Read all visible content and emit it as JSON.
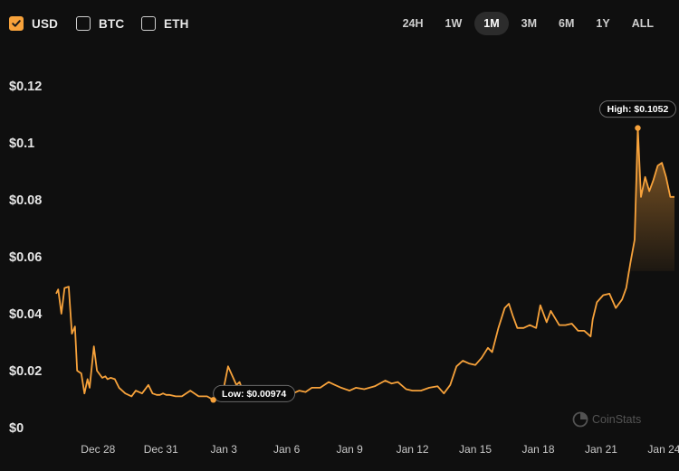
{
  "currencies": [
    {
      "label": "USD",
      "checked": true
    },
    {
      "label": "BTC",
      "checked": false
    },
    {
      "label": "ETH",
      "checked": false
    }
  ],
  "ranges": [
    {
      "label": "24H",
      "active": false
    },
    {
      "label": "1W",
      "active": false
    },
    {
      "label": "1M",
      "active": true
    },
    {
      "label": "3M",
      "active": false
    },
    {
      "label": "6M",
      "active": false
    },
    {
      "label": "1Y",
      "active": false
    },
    {
      "label": "ALL",
      "active": false
    }
  ],
  "watermark": "CoinStats",
  "colors": {
    "line": "#f7a23b",
    "checked": "#f7a23b",
    "background": "#0f0f0f"
  },
  "chart_data": {
    "type": "area",
    "title": "",
    "xlabel": "",
    "ylabel": "",
    "ylim": [
      0,
      0.12
    ],
    "xlim": [
      -1.0,
      28.5
    ],
    "grid": false,
    "y_ticks": [
      {
        "value": 0,
        "label": "$0"
      },
      {
        "value": 0.02,
        "label": "$0.02"
      },
      {
        "value": 0.04,
        "label": "$0.04"
      },
      {
        "value": 0.06,
        "label": "$0.06"
      },
      {
        "value": 0.08,
        "label": "$0.08"
      },
      {
        "value": 0.1,
        "label": "$0.1"
      },
      {
        "value": 0.12,
        "label": "$0.12"
      }
    ],
    "x_ticks": [
      {
        "day": 1,
        "label": "Dec 28"
      },
      {
        "day": 4,
        "label": "Dec 31"
      },
      {
        "day": 7,
        "label": "Jan 3"
      },
      {
        "day": 10,
        "label": "Jan 6"
      },
      {
        "day": 13,
        "label": "Jan 9"
      },
      {
        "day": 16,
        "label": "Jan 12"
      },
      {
        "day": 19,
        "label": "Jan 15"
      },
      {
        "day": 22,
        "label": "Jan 18"
      },
      {
        "day": 25,
        "label": "Jan 21"
      },
      {
        "day": 28,
        "label": "Jan 24"
      }
    ],
    "series": [
      {
        "x": [
          -1.0,
          -0.9,
          -0.75,
          -0.6,
          -0.4,
          -0.25,
          -0.1,
          0.0,
          0.2,
          0.35,
          0.5,
          0.6,
          0.8,
          0.95,
          1.2,
          1.35,
          1.45,
          1.6,
          1.8,
          2.0,
          2.3,
          2.6,
          2.8,
          3.1,
          3.4,
          3.6,
          3.8,
          3.95,
          4.1,
          4.25,
          4.4,
          4.7,
          5.0,
          5.4,
          5.8,
          6.2,
          6.5,
          6.7,
          6.8,
          7.0,
          7.2,
          7.6,
          7.75,
          7.9,
          8.1,
          8.3,
          8.6,
          9.0,
          9.4,
          9.7,
          10.0,
          10.3,
          10.6,
          10.9,
          11.2,
          11.6,
          12.0,
          12.3,
          12.6,
          13.0,
          13.3,
          13.7,
          14.2,
          14.7,
          15.0,
          15.3,
          15.7,
          16.0,
          16.4,
          16.8,
          17.2,
          17.5,
          17.8,
          18.1,
          18.4,
          18.7,
          19.0,
          19.3,
          19.6,
          19.8,
          20.1,
          20.4,
          20.6,
          20.8,
          21.0,
          21.3,
          21.6,
          21.9,
          22.1,
          22.4,
          22.6,
          22.8,
          23.0,
          23.3,
          23.6,
          23.9,
          24.2,
          24.5,
          24.6,
          24.8,
          25.1,
          25.4,
          25.7,
          26.0,
          26.2,
          26.4,
          26.6,
          26.75,
          26.9,
          27.1,
          27.3,
          27.5,
          27.7,
          27.9,
          28.1,
          28.3,
          28.5
        ],
        "values": [
          0.047,
          0.0485,
          0.04,
          0.049,
          0.0495,
          0.033,
          0.0355,
          0.02,
          0.019,
          0.012,
          0.017,
          0.014,
          0.0285,
          0.02,
          0.0175,
          0.018,
          0.017,
          0.0175,
          0.017,
          0.014,
          0.012,
          0.011,
          0.013,
          0.012,
          0.015,
          0.012,
          0.0115,
          0.0115,
          0.012,
          0.0115,
          0.0115,
          0.011,
          0.011,
          0.013,
          0.011,
          0.011,
          0.00974,
          0.0115,
          0.013,
          0.014,
          0.0215,
          0.015,
          0.016,
          0.013,
          0.014,
          0.014,
          0.013,
          0.012,
          0.0115,
          0.012,
          0.0125,
          0.012,
          0.013,
          0.0125,
          0.014,
          0.014,
          0.016,
          0.015,
          0.014,
          0.013,
          0.014,
          0.0135,
          0.0145,
          0.0165,
          0.0155,
          0.016,
          0.0135,
          0.013,
          0.013,
          0.014,
          0.0145,
          0.012,
          0.015,
          0.0215,
          0.0235,
          0.0225,
          0.022,
          0.0245,
          0.028,
          0.0265,
          0.035,
          0.042,
          0.0435,
          0.039,
          0.035,
          0.035,
          0.036,
          0.035,
          0.043,
          0.037,
          0.041,
          0.0385,
          0.036,
          0.036,
          0.0365,
          0.034,
          0.034,
          0.032,
          0.038,
          0.044,
          0.0465,
          0.047,
          0.042,
          0.045,
          0.049,
          0.058,
          0.066,
          0.1052,
          0.081,
          0.088,
          0.083,
          0.087,
          0.092,
          0.093,
          0.088,
          0.081,
          0.081
        ]
      }
    ],
    "annotations": [
      {
        "label": "High: $0.1052",
        "x": 26.75,
        "y": 0.1052
      },
      {
        "label": "Low: $0.00974",
        "x": 6.5,
        "y": 0.00974
      }
    ]
  }
}
